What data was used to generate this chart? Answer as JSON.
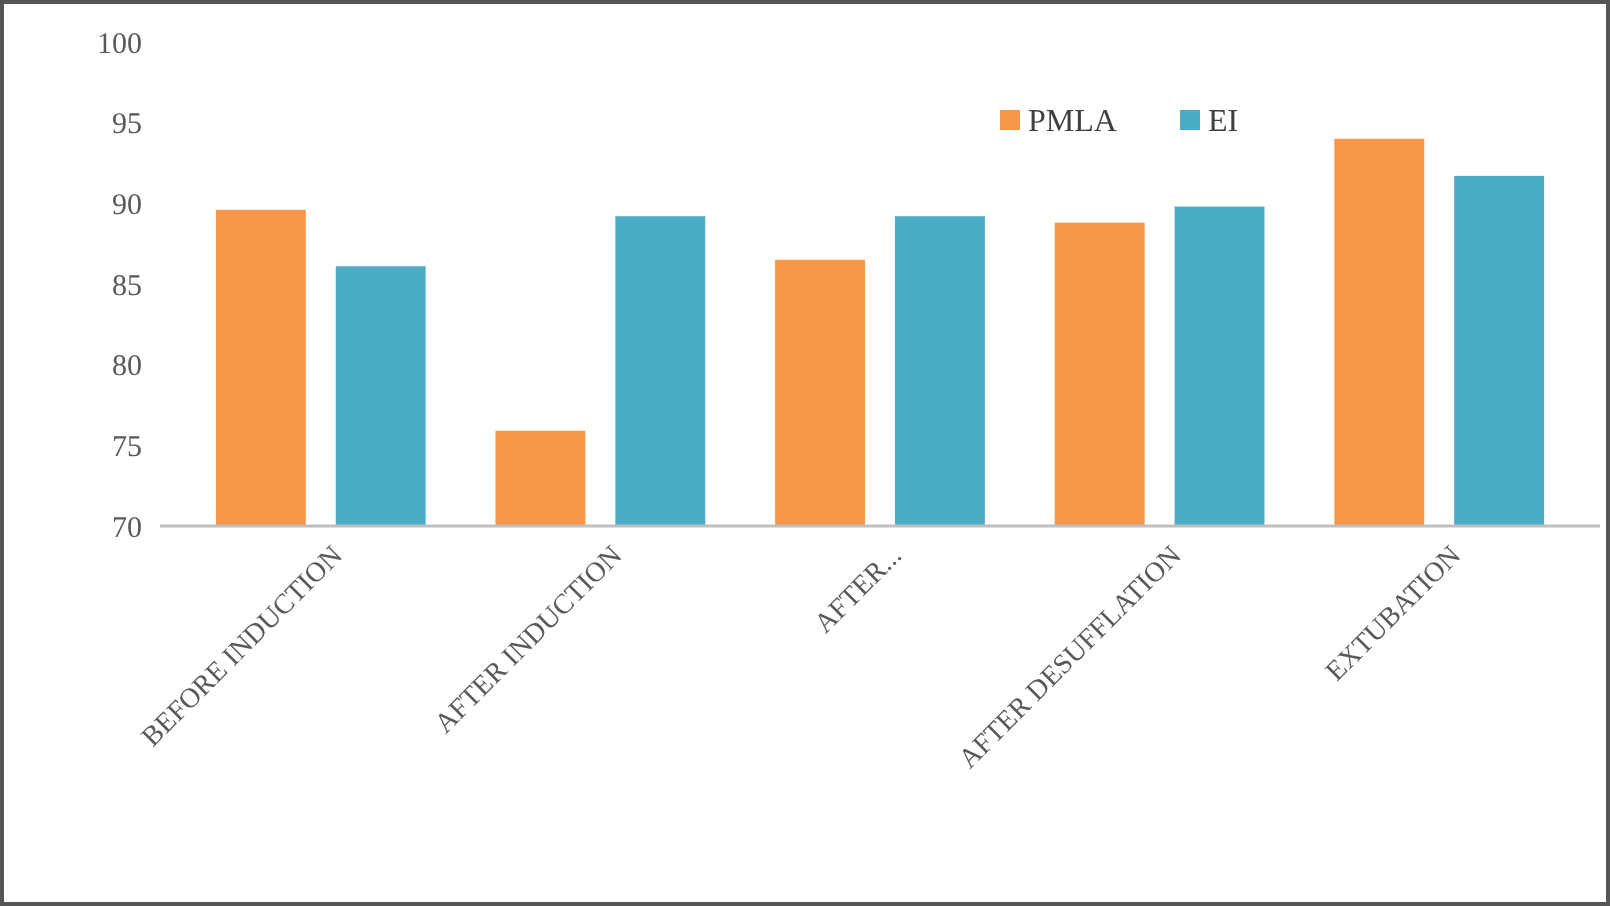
{
  "chart_data": {
    "type": "bar",
    "categories": [
      "BEFORE INDUCTION",
      "AFTER INDUCTION",
      "AFTER...",
      "AFTER DESUFFLATION",
      "EXTUBATION"
    ],
    "series": [
      {
        "name": "PMLA",
        "color": "#f79646",
        "values": [
          89.6,
          75.9,
          86.5,
          88.8,
          94
        ]
      },
      {
        "name": "EI",
        "color": "#4bacc6",
        "values": [
          86.1,
          89.2,
          89.2,
          89.8,
          91.7
        ]
      }
    ],
    "ylim": [
      70,
      100
    ],
    "yticks": [
      70,
      75,
      80,
      85,
      90,
      95,
      100
    ],
    "grid": false,
    "legend": "top right"
  }
}
